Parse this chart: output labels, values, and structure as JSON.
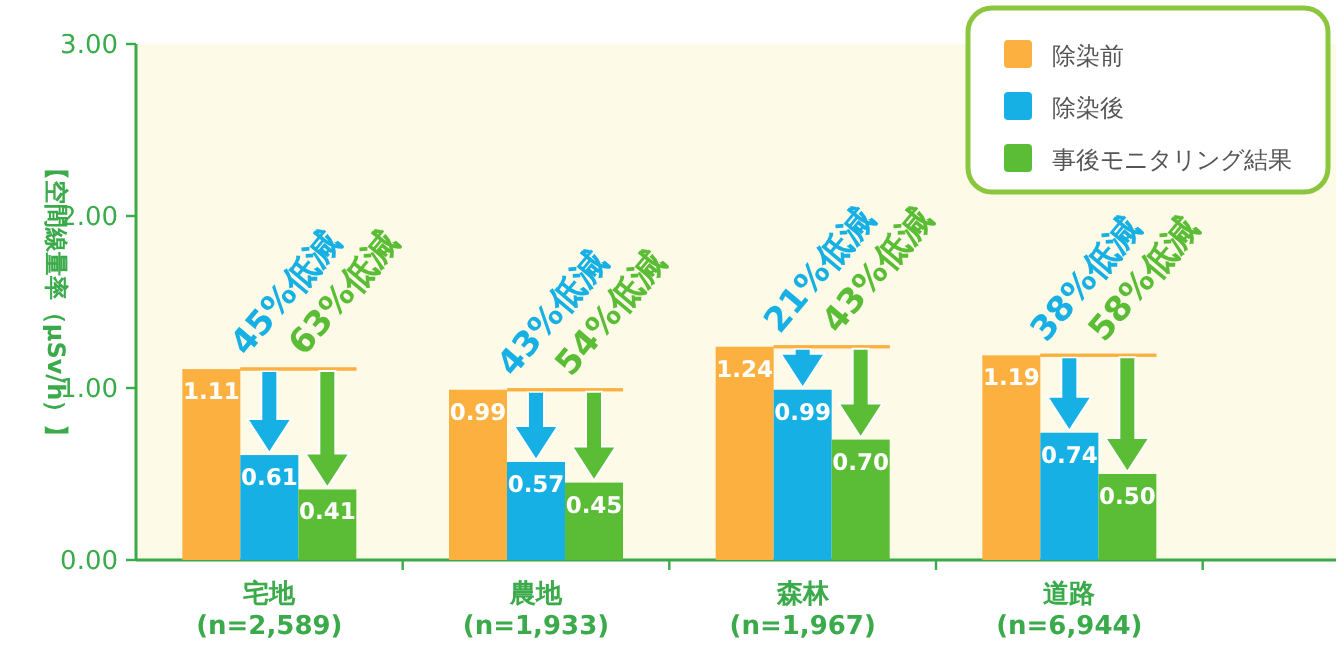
{
  "chart_data": {
    "type": "bar",
    "ylabel": "【空間線量率（μSv/h）】",
    "categories": [
      "宅地\n(n=2,589)",
      "農地\n(n=1,933)",
      "森林\n(n=1,967)",
      "道路\n(n=6,944)"
    ],
    "series": [
      {
        "name": "除染前",
        "color": "#fbb040",
        "values": [
          1.11,
          0.99,
          1.24,
          1.19
        ],
        "value_labels": [
          "1.11",
          "0.99",
          "1.24",
          "1.19"
        ]
      },
      {
        "name": "除染後",
        "color": "#16b0e4",
        "values": [
          0.61,
          0.57,
          0.99,
          0.74
        ],
        "value_labels": [
          "0.61",
          "0.57",
          "0.99",
          "0.74"
        ]
      },
      {
        "name": "事後モニタリング結果",
        "color": "#5bbd36",
        "values": [
          0.41,
          0.45,
          0.7,
          0.5
        ],
        "value_labels": [
          "0.41",
          "0.45",
          "0.70",
          "0.50"
        ]
      }
    ],
    "ylim": [
      0,
      3
    ],
    "yticks": [
      {
        "value": 0,
        "label": "0.00"
      },
      {
        "value": 1,
        "label": "1.00"
      },
      {
        "value": 2,
        "label": "2.00"
      },
      {
        "value": 3,
        "label": "3.00"
      }
    ],
    "legend": "top right",
    "annotations": [
      "45%低減",
      "63%低減",
      "43%低減",
      "54%低減",
      "21%低減",
      "43%低減",
      "38%低減",
      "58%低減"
    ]
  }
}
